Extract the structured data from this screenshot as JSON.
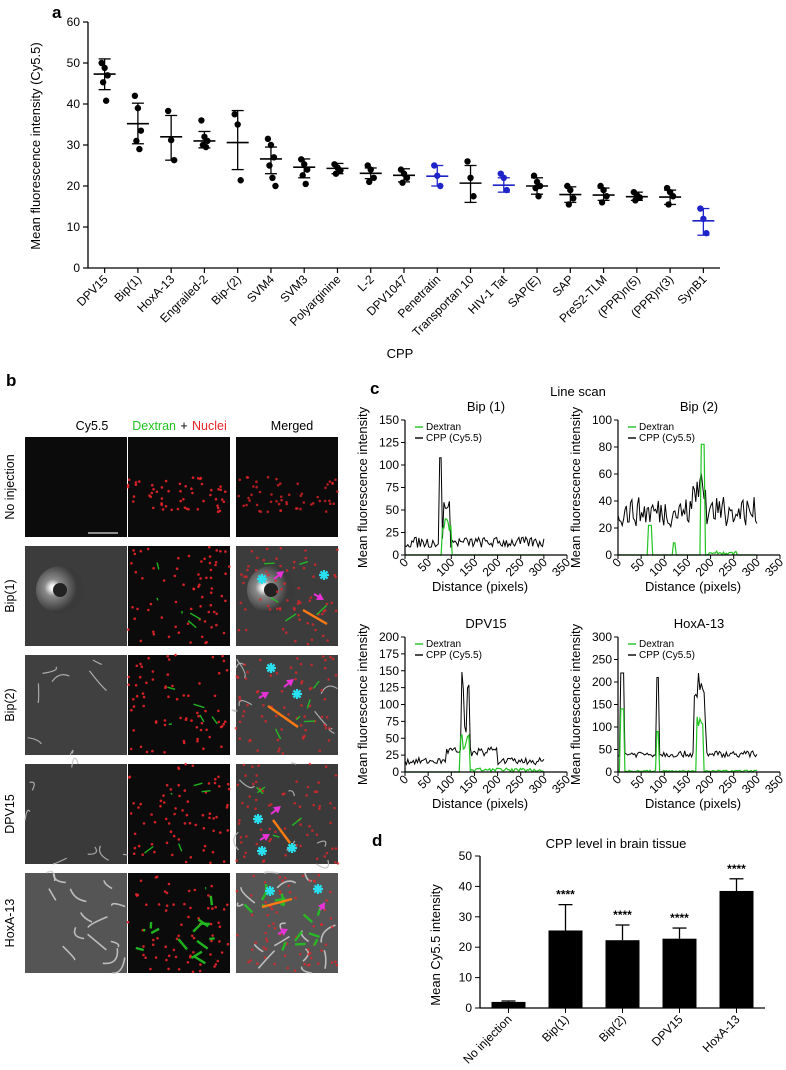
{
  "panels": {
    "a": "a",
    "b": "b",
    "c": "c",
    "d": "d"
  },
  "colors": {
    "black": "#000000",
    "blue": "#1f24c8",
    "green": "#22c322",
    "red": "#e8242a",
    "cyan": "#29e0f0",
    "magenta": "#e832d8",
    "orange": "#ff7a12"
  },
  "chart_a": {
    "type": "scatter",
    "ylabel": "Mean fluorescence intensity (Cy5.5)",
    "xlabel": "CPP",
    "ylim": [
      0,
      60
    ],
    "yticks": [
      0,
      10,
      20,
      30,
      40,
      50,
      60
    ],
    "categories": [
      {
        "name": "DPV15",
        "color": "black",
        "mean": 47.3,
        "sd": [
          43.5,
          51.0
        ],
        "points": [
          50,
          48.8,
          47,
          45.3,
          40.8
        ]
      },
      {
        "name": "Bip(1)",
        "color": "black",
        "mean": 35.2,
        "sd": [
          30.3,
          40.2
        ],
        "points": [
          42,
          39,
          33.5,
          31,
          29
        ]
      },
      {
        "name": "HoxA-13",
        "color": "black",
        "mean": 32.0,
        "sd": [
          26.3,
          37.2
        ],
        "points": [
          38.3,
          31.2,
          26.3
        ]
      },
      {
        "name": "Engrailed-2",
        "color": "black",
        "mean": 31.0,
        "sd": [
          29.3,
          33.3
        ],
        "points": [
          36,
          32,
          31,
          30,
          29.5
        ]
      },
      {
        "name": "Bip-(2)",
        "color": "black",
        "mean": 30.6,
        "sd": [
          24.0,
          38.4
        ],
        "points": [
          37.5,
          35,
          21.4
        ]
      },
      {
        "name": "SVM4",
        "color": "black",
        "mean": 26.6,
        "sd": [
          23.0,
          29.5
        ],
        "points": [
          31.5,
          30,
          27,
          25,
          22,
          20
        ]
      },
      {
        "name": "SVM3",
        "color": "black",
        "mean": 24.6,
        "sd": [
          22.0,
          26.6
        ],
        "points": [
          26.5,
          25.3,
          24,
          22.6,
          20.5
        ]
      },
      {
        "name": "Polyarginine",
        "color": "black",
        "mean": 24.3,
        "sd": [
          23.0,
          25.5
        ],
        "points": [
          25.3,
          24.5,
          23.8,
          23
        ]
      },
      {
        "name": "L-2",
        "color": "black",
        "mean": 23.1,
        "sd": [
          21.8,
          24.4
        ],
        "points": [
          25,
          24,
          22,
          21
        ]
      },
      {
        "name": "DPV1047",
        "color": "black",
        "mean": 22.6,
        "sd": [
          21.0,
          24.2
        ],
        "points": [
          24,
          23,
          22,
          20.8
        ]
      },
      {
        "name": "Penetratin",
        "color": "blue",
        "mean": 22.4,
        "sd": [
          20.0,
          25.0
        ],
        "points": [
          25,
          22.5,
          20
        ]
      },
      {
        "name": "Transportan 10",
        "color": "black",
        "mean": 20.7,
        "sd": [
          16.0,
          25.0
        ],
        "points": [
          26,
          22,
          17.5
        ]
      },
      {
        "name": "HIV-1 Tat",
        "color": "blue",
        "mean": 20.2,
        "sd": [
          18.5,
          22.0
        ],
        "points": [
          23,
          22,
          19
        ]
      },
      {
        "name": "SAP(E)",
        "color": "black",
        "mean": 20.0,
        "sd": [
          18.0,
          22.0
        ],
        "points": [
          22.5,
          21,
          20,
          19.5,
          17.5
        ]
      },
      {
        "name": "SAP",
        "color": "black",
        "mean": 17.9,
        "sd": [
          16.0,
          19.8
        ],
        "points": [
          20,
          19,
          17,
          15.5
        ]
      },
      {
        "name": "PreS2-TLM",
        "color": "black",
        "mean": 17.8,
        "sd": [
          16.5,
          19.5
        ],
        "points": [
          20,
          19,
          17.5,
          16
        ]
      },
      {
        "name": "(PPR)n(5)",
        "color": "black",
        "mean": 17.4,
        "sd": [
          16.5,
          18.5
        ],
        "points": [
          18.5,
          17.8,
          17.2,
          16.5
        ]
      },
      {
        "name": "(PPR)n(3)",
        "color": "black",
        "mean": 17.3,
        "sd": [
          15.5,
          19.0
        ],
        "points": [
          19.5,
          18.5,
          17.5,
          15.5
        ]
      },
      {
        "name": "SynB1",
        "color": "blue",
        "mean": 11.5,
        "sd": [
          8.0,
          14.5
        ],
        "points": [
          14.5,
          12,
          8.5
        ]
      }
    ]
  },
  "panel_b": {
    "columns": [
      "Cy5.5",
      "Dextran",
      "+",
      "Nuclei",
      "Merged"
    ],
    "rows": [
      "No injection",
      "Bip(1)",
      "Bip(2)",
      "DPV15",
      "HoxA-13"
    ]
  },
  "panel_c": {
    "title": "Line scan",
    "xlabel": "Distance (pixels)",
    "ylabel": "Mean fluorescence intensity",
    "xticks": [
      0,
      50,
      100,
      150,
      200,
      250,
      300,
      350
    ],
    "legend": [
      "Dextran",
      "CPP (Cy5.5)"
    ],
    "plots": [
      {
        "name": "Bip (1)",
        "ylim": [
          0,
          150
        ],
        "yticks": [
          0,
          25,
          50,
          75,
          100,
          125,
          150
        ]
      },
      {
        "name": "Bip (2)",
        "ylim": [
          0,
          100
        ],
        "yticks": [
          0,
          20,
          40,
          60,
          80,
          100
        ]
      },
      {
        "name": "DPV15",
        "ylim": [
          0,
          200
        ],
        "yticks": [
          0,
          25,
          50,
          75,
          100,
          125,
          150,
          175,
          200
        ]
      },
      {
        "name": "HoxA-13",
        "ylim": [
          0,
          300
        ],
        "yticks": [
          0,
          50,
          100,
          150,
          200,
          250,
          300
        ]
      }
    ]
  },
  "chart_d": {
    "type": "bar",
    "title": "CPP level in brain tissue",
    "ylabel": "Mean Cy5.5 intensity",
    "ylim": [
      0,
      50
    ],
    "yticks": [
      0,
      10,
      20,
      30,
      40,
      50
    ],
    "categories": [
      "No injection",
      "Bip(1)",
      "Bip(2)",
      "DPV15",
      "HoxA-13"
    ],
    "values": [
      2,
      25.5,
      22.3,
      22.8,
      38.5
    ],
    "errors": [
      0.3,
      8.5,
      5.0,
      3.5,
      4.0
    ],
    "significance": [
      "",
      "****",
      "****",
      "****",
      "****"
    ]
  }
}
